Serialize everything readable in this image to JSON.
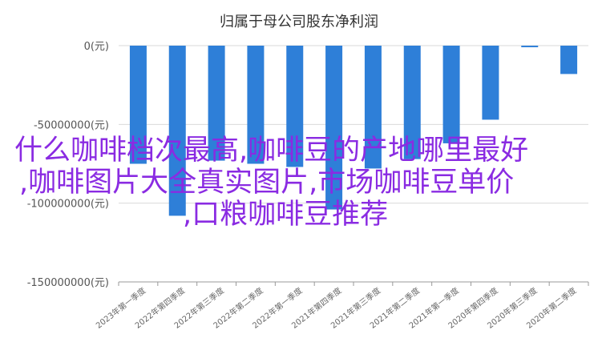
{
  "chart_data": {
    "type": "bar",
    "title": "归属于母公司股东净利润",
    "categories": [
      "2023年第一季度",
      "2022年第四季度",
      "2022年第三季度",
      "2022年第二季度",
      "2022年第一季度",
      "2021年第四季度",
      "2021年第三季度",
      "2021年第二季度",
      "2021年第一季度",
      "2020年第四季度",
      "2020年第三季度",
      "2020年第二季度"
    ],
    "values": [
      -75000000,
      -108000000,
      -73000000,
      -75000000,
      -77000000,
      -104000000,
      -78000000,
      -72000000,
      -62000000,
      -47000000,
      -1000000,
      -18000000
    ],
    "yticks": [
      "0(元)",
      "-50000000(元)",
      "-100000000(元)",
      "-150000000(元)"
    ],
    "ylim": [
      -150000000,
      0
    ],
    "bar_color": "#2e7fd8",
    "grid": true
  },
  "overlay": {
    "lines": [
      "什么咖啡档次最高,咖啡豆的产地哪里最好",
      ",咖啡图片大全真实图片,市场咖啡豆单价",
      ",口粮咖啡豆推荐"
    ],
    "color": "#8a2be2"
  }
}
